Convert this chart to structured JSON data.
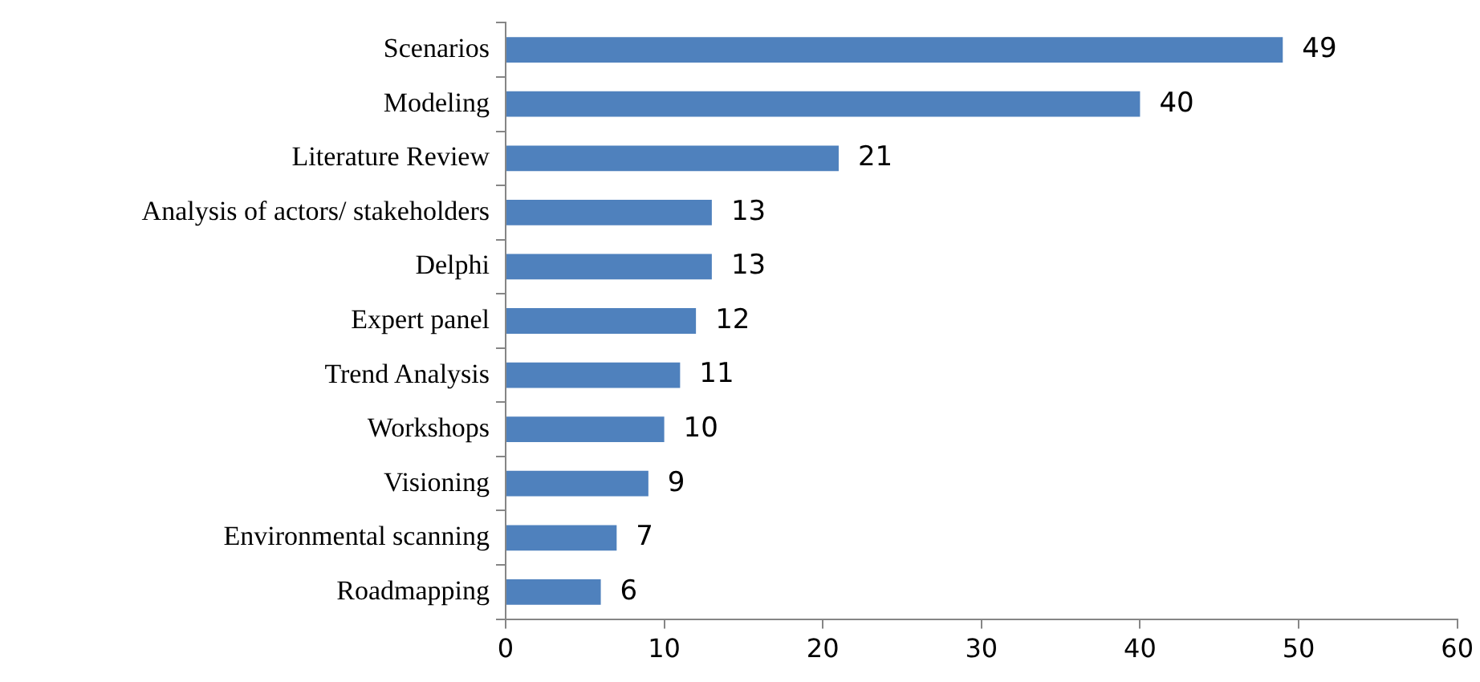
{
  "chart_data": {
    "type": "bar",
    "orientation": "horizontal",
    "categories": [
      "Scenarios",
      "Modeling",
      "Literature Review",
      "Analysis of actors/ stakeholders",
      "Delphi",
      "Expert panel",
      "Trend Analysis",
      "Workshops",
      "Visioning",
      "Environmental scanning",
      "Roadmapping"
    ],
    "values": [
      49,
      40,
      21,
      13,
      13,
      12,
      11,
      10,
      9,
      7,
      6
    ],
    "color": "#4f81bd",
    "xlim": [
      0,
      60
    ],
    "xticks": [
      0,
      10,
      20,
      30,
      40,
      50,
      60
    ],
    "data_labels": true,
    "grid": false,
    "legend": false
  }
}
